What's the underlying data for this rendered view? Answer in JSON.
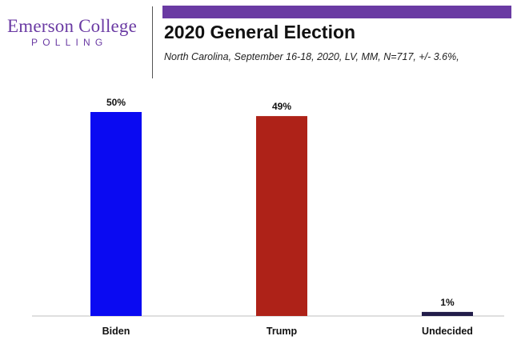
{
  "logo": {
    "name": "Emerson College",
    "sub": "POLLING"
  },
  "header": {
    "title": "2020 General Election",
    "subtitle": "North Carolina, September 16-18, 2020, LV, MM, N=717, +/- 3.6%,"
  },
  "colors": {
    "brand_purple": "#6a3aa3",
    "biden": "#0a0af2",
    "trump": "#ae2218",
    "undecided": "#221d4a",
    "axis": "#bfbfbf"
  },
  "chart_data": {
    "type": "bar",
    "title": "2020 General Election",
    "categories": [
      "Biden",
      "Trump",
      "Undecided"
    ],
    "values": [
      50,
      49,
      1
    ],
    "value_labels": [
      "50%",
      "49%",
      "1%"
    ],
    "ylim": [
      0,
      50
    ],
    "grid": false,
    "legend": "none"
  }
}
